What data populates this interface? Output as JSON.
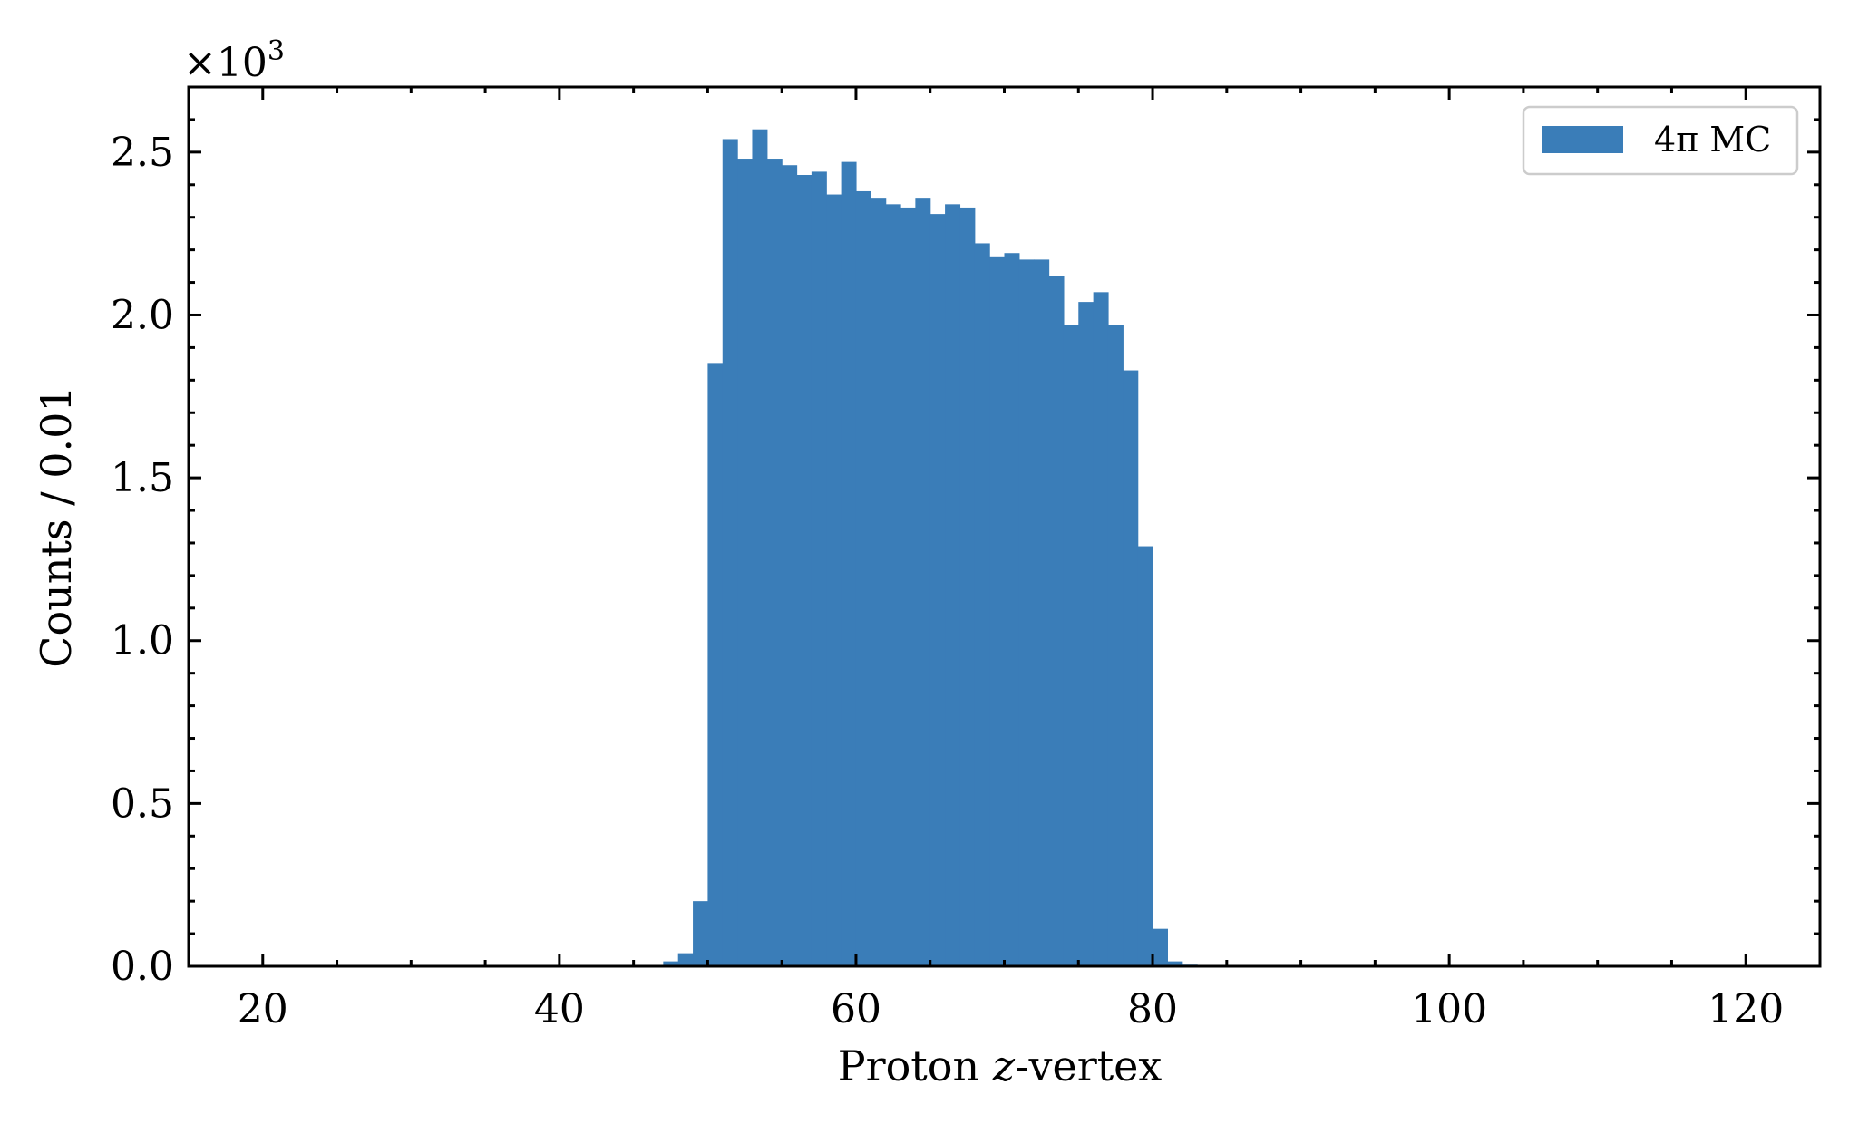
{
  "chart_data": {
    "type": "bar",
    "xlabel_parts": [
      "Proton ",
      "z",
      "-vertex"
    ],
    "ylabel": "Counts / 0.01",
    "y_multiplier_base": "×10",
    "y_multiplier_exp": "3",
    "xlim": [
      15,
      125
    ],
    "ylim": [
      0,
      2.7
    ],
    "x_ticks": [
      "20",
      "40",
      "60",
      "80",
      "100",
      "120"
    ],
    "y_ticks": [
      "0.0",
      "0.5",
      "1.0",
      "1.5",
      "2.0",
      "2.5"
    ],
    "legend_position": "top-right",
    "color": "#3a7db8",
    "series": [
      {
        "name": "4π MC",
        "bin_edges": [
          45,
          46,
          47,
          48,
          49,
          50,
          51,
          52,
          53,
          54,
          55,
          56,
          57,
          58,
          59,
          60,
          61,
          62,
          63,
          64,
          65,
          66,
          67,
          68,
          69,
          70,
          71,
          72,
          73,
          74,
          75,
          76,
          77,
          78,
          79,
          80,
          81,
          82,
          83,
          84
        ],
        "values": [
          0.0,
          0.003,
          0.015,
          0.04,
          0.2,
          1.85,
          2.54,
          2.48,
          2.57,
          2.48,
          2.46,
          2.43,
          2.44,
          2.37,
          2.47,
          2.38,
          2.36,
          2.34,
          2.33,
          2.36,
          2.31,
          2.34,
          2.33,
          2.22,
          2.18,
          2.19,
          2.17,
          2.17,
          2.12,
          1.97,
          2.04,
          2.07,
          1.97,
          1.83,
          1.29,
          0.115,
          0.015,
          0.005,
          0.001
        ]
      }
    ]
  }
}
